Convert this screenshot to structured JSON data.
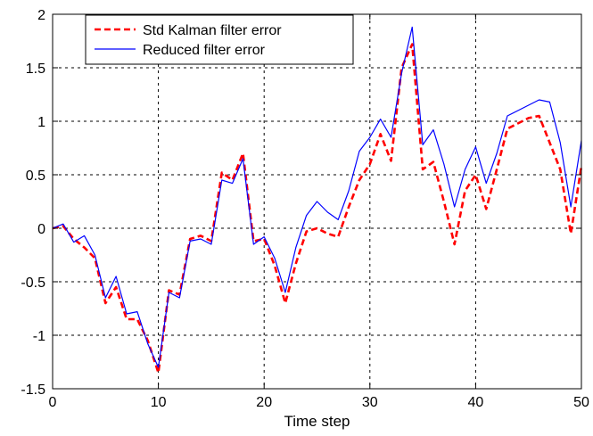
{
  "chart_data": {
    "type": "line",
    "xlabel": "Time step",
    "ylabel": "",
    "xlim": [
      0,
      50
    ],
    "ylim": [
      -1.5,
      2
    ],
    "grid": true,
    "grid_style": "dashed",
    "legend_position": "top-left",
    "x_ticks": [
      "0",
      "10",
      "20",
      "30",
      "40",
      "50"
    ],
    "y_ticks": [
      "-1.5",
      "-1",
      "-0.5",
      "0",
      "0.5",
      "1",
      "1.5",
      "2"
    ],
    "x": [
      0,
      1,
      2,
      3,
      4,
      5,
      6,
      7,
      8,
      9,
      10,
      11,
      12,
      13,
      14,
      15,
      16,
      17,
      18,
      19,
      20,
      21,
      22,
      23,
      24,
      25,
      26,
      27,
      28,
      29,
      30,
      31,
      32,
      33,
      34,
      35,
      36,
      37,
      38,
      39,
      40,
      41,
      42,
      43,
      44,
      45,
      46,
      47,
      48,
      49,
      50
    ],
    "series": [
      {
        "name": "Std Kalman filter error",
        "color": "#ff0000",
        "style": "dashed",
        "values": [
          0.0,
          0.02,
          -0.1,
          -0.18,
          -0.28,
          -0.7,
          -0.55,
          -0.85,
          -0.85,
          -1.05,
          -1.35,
          -0.58,
          -0.62,
          -0.1,
          -0.07,
          -0.12,
          0.52,
          0.45,
          0.7,
          -0.12,
          -0.1,
          -0.35,
          -0.7,
          -0.33,
          -0.03,
          0.0,
          -0.05,
          -0.08,
          0.2,
          0.45,
          0.6,
          0.88,
          0.63,
          1.5,
          1.72,
          0.55,
          0.62,
          0.25,
          -0.15,
          0.35,
          0.5,
          0.18,
          0.55,
          0.93,
          0.98,
          1.03,
          1.05,
          0.8,
          0.55,
          -0.05,
          0.58
        ]
      },
      {
        "name": "Reduced filter error",
        "color": "#0000ff",
        "style": "solid",
        "values": [
          0.0,
          0.04,
          -0.13,
          -0.07,
          -0.25,
          -0.65,
          -0.45,
          -0.8,
          -0.78,
          -1.08,
          -1.3,
          -0.6,
          -0.65,
          -0.12,
          -0.1,
          -0.15,
          0.45,
          0.42,
          0.65,
          -0.15,
          -0.08,
          -0.28,
          -0.6,
          -0.18,
          0.12,
          0.25,
          0.15,
          0.08,
          0.35,
          0.72,
          0.85,
          1.02,
          0.85,
          1.45,
          1.88,
          0.78,
          0.92,
          0.6,
          0.2,
          0.55,
          0.76,
          0.42,
          0.7,
          1.05,
          1.1,
          1.15,
          1.2,
          1.18,
          0.8,
          0.2,
          0.82
        ]
      }
    ]
  }
}
